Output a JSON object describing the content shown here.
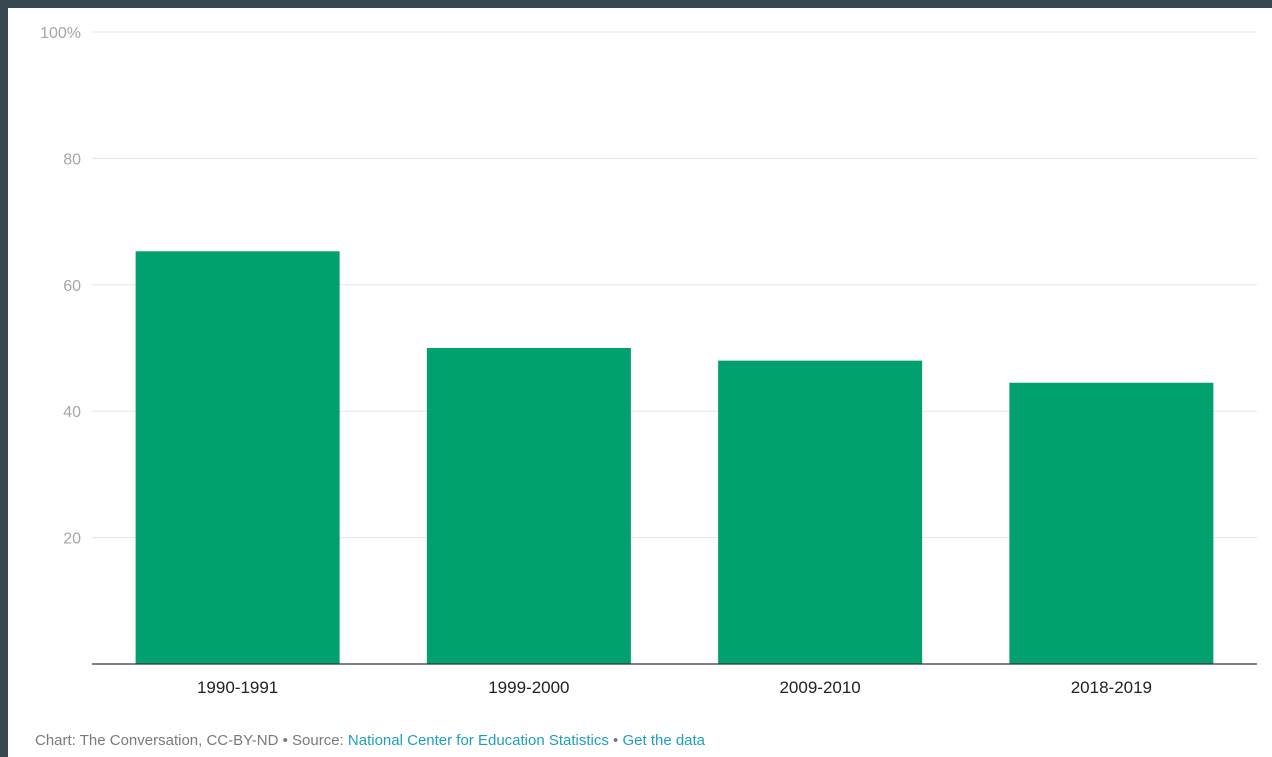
{
  "chart_data": {
    "type": "bar",
    "categories": [
      "1990-1991",
      "1999-2000",
      "2009-2010",
      "2018-2019"
    ],
    "values": [
      65.3,
      50.0,
      48.0,
      44.5
    ],
    "ylim": [
      0,
      100
    ],
    "yticks": [
      {
        "value": 20,
        "label": "20"
      },
      {
        "value": 40,
        "label": "40"
      },
      {
        "value": 60,
        "label": "60"
      },
      {
        "value": 80,
        "label": "80"
      },
      {
        "value": 100,
        "label": "100%"
      }
    ],
    "title": "",
    "xlabel": "",
    "ylabel": "",
    "grid": true,
    "bar_color": "#02a06e"
  },
  "footer": {
    "credit": "Chart: The Conversation, CC-BY-ND",
    "separator": " • ",
    "source_prefix": "Source: ",
    "source_link": "National Center for Education Statistics",
    "data_link": "Get the data"
  },
  "colors": {
    "page_frame": "#37474f",
    "link": "#1f9fbf"
  }
}
